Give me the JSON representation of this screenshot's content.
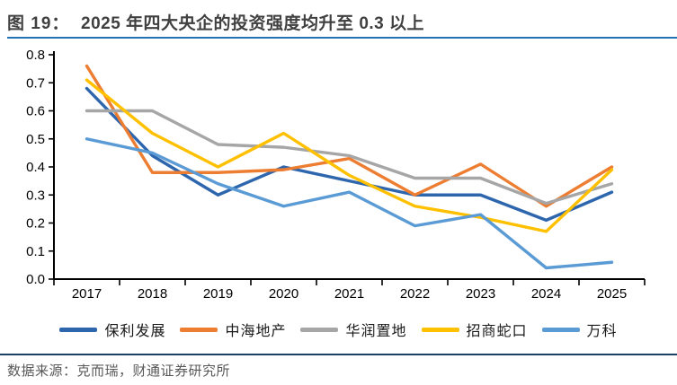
{
  "figure": {
    "label": "图 19：",
    "title": "2025 年四大央企的投资强度均升至 0.3 以上"
  },
  "chart_data": {
    "type": "line",
    "title": "2025 年四大央企的投资强度均升至 0.3 以上",
    "categories": [
      "2017",
      "2018",
      "2019",
      "2020",
      "2021",
      "2022",
      "2023",
      "2024",
      "2025"
    ],
    "series": [
      {
        "name": "保利发展",
        "color": "#2E66AE",
        "values": [
          0.68,
          0.44,
          0.3,
          0.4,
          0.35,
          0.3,
          0.3,
          0.21,
          0.31
        ]
      },
      {
        "name": "中海地产",
        "color": "#ED7D31",
        "values": [
          0.76,
          0.38,
          0.38,
          0.39,
          0.43,
          0.3,
          0.41,
          0.26,
          0.4
        ]
      },
      {
        "name": "华润置地",
        "color": "#A6A6A6",
        "values": [
          0.6,
          0.6,
          0.48,
          0.47,
          0.44,
          0.36,
          0.36,
          0.27,
          0.34
        ]
      },
      {
        "name": "招商蛇口",
        "color": "#FFC000",
        "values": [
          0.71,
          0.52,
          0.4,
          0.52,
          0.37,
          0.26,
          0.22,
          0.17,
          0.39
        ]
      },
      {
        "name": "万科",
        "color": "#5B9BD5",
        "values": [
          0.5,
          0.45,
          0.34,
          0.26,
          0.31,
          0.19,
          0.23,
          0.04,
          0.06
        ]
      }
    ],
    "ylim": [
      0,
      0.8
    ],
    "ytick_step": 0.1,
    "ytick_labels": [
      "0.0",
      "0.1",
      "0.2",
      "0.3",
      "0.4",
      "0.5",
      "0.6",
      "0.7",
      "0.8"
    ],
    "grid": false,
    "legend_position": "bottom"
  },
  "footer": {
    "source_text": "数据来源：克而瑞，财通证券研究所"
  },
  "colors": {
    "title_text": "#404040",
    "title_rule": "#2573B3",
    "footer_rule": "#1F4066",
    "footer_text": "#595959",
    "axis": "#000000"
  }
}
